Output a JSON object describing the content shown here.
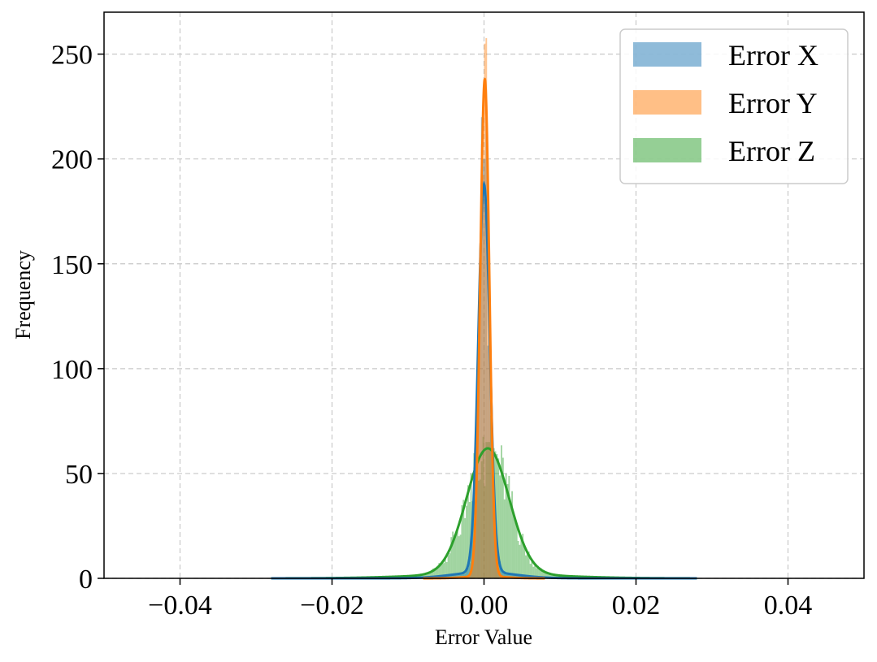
{
  "chart_data": {
    "type": "histogram",
    "title": "",
    "xlabel": "Error Value",
    "ylabel": "Frequency",
    "xlim": [
      -0.05,
      0.05
    ],
    "ylim": [
      0,
      270
    ],
    "xticks": [
      -0.04,
      -0.02,
      0.0,
      0.02,
      0.04
    ],
    "xtick_labels": [
      "−0.04",
      "−0.02",
      "0.00",
      "0.02",
      "0.04"
    ],
    "yticks": [
      0,
      50,
      100,
      150,
      200,
      250
    ],
    "ytick_labels": [
      "0",
      "50",
      "100",
      "150",
      "200",
      "250"
    ],
    "grid": true,
    "legend_position": "top-right",
    "bin_width": 0.0002,
    "series": [
      {
        "name": "Error X",
        "color": "#1f77b4",
        "center": 0.0,
        "sigma": 0.00075,
        "peak": 185,
        "tail_amp": 3,
        "tail_sigma": 0.004,
        "range": [
          -0.028,
          0.028
        ],
        "hist_peak": 200
      },
      {
        "name": "Error Y",
        "color": "#ff7f0e",
        "center": 0.0001,
        "sigma": 0.0006,
        "peak": 237,
        "tail_amp": 1,
        "tail_sigma": 0.0025,
        "range": [
          -0.008,
          0.008
        ],
        "hist_peak": 255
      },
      {
        "name": "Error Z",
        "color": "#2ca02c",
        "center": 0.0005,
        "sigma": 0.0028,
        "peak": 60,
        "tail_amp": 2,
        "tail_sigma": 0.009,
        "range": [
          -0.028,
          0.028
        ],
        "hist_peak": 65
      }
    ]
  }
}
